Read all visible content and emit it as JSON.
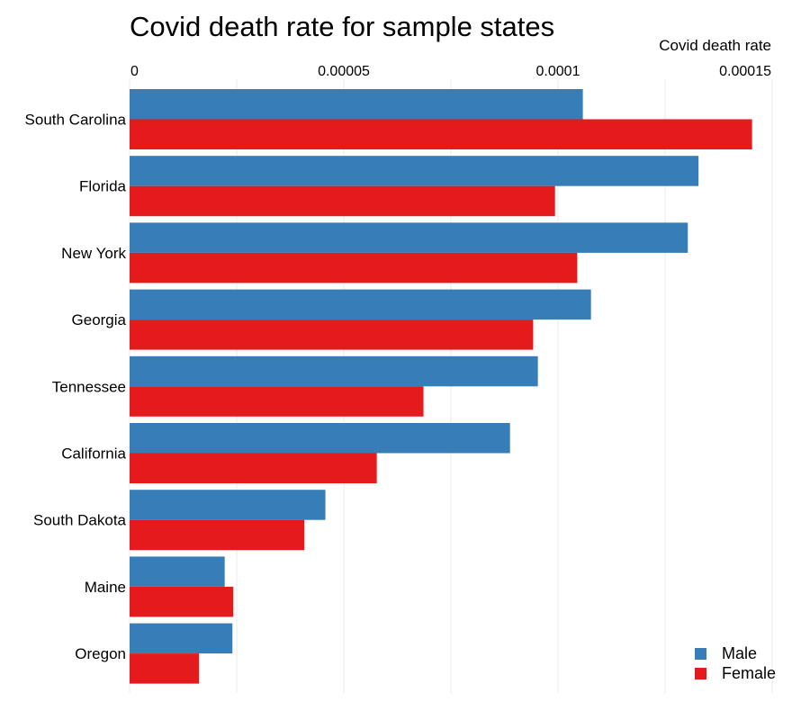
{
  "chart_data": {
    "type": "bar",
    "orientation": "horizontal",
    "title": "Covid death rate for sample states",
    "xlabel": "Covid death rate",
    "ylabel": "",
    "x_axis_position": "top",
    "xlim": [
      0,
      0.00015
    ],
    "x_ticks": [
      0,
      5e-05,
      0.0001,
      0.00015
    ],
    "x_tick_labels": [
      "0",
      "0.00005",
      "0.0001",
      "0.00015"
    ],
    "grid": true,
    "legend_position": "bottom-right",
    "categories": [
      "South Carolina",
      "Florida",
      "New York",
      "Georgia",
      "Tennessee",
      "California",
      "South Dakota",
      "Maine",
      "Oregon"
    ],
    "series": [
      {
        "name": "Male",
        "color": "#377eb8",
        "values": [
          0.0001058,
          0.0001328,
          0.0001303,
          0.0001077,
          9.53e-05,
          8.88e-05,
          4.57e-05,
          2.22e-05,
          2.4e-05
        ]
      },
      {
        "name": "Female",
        "color": "#e41a1c",
        "values": [
          0.0001453,
          9.93e-05,
          0.0001045,
          9.42e-05,
          6.86e-05,
          5.77e-05,
          4.08e-05,
          2.42e-05,
          1.62e-05
        ]
      }
    ]
  }
}
